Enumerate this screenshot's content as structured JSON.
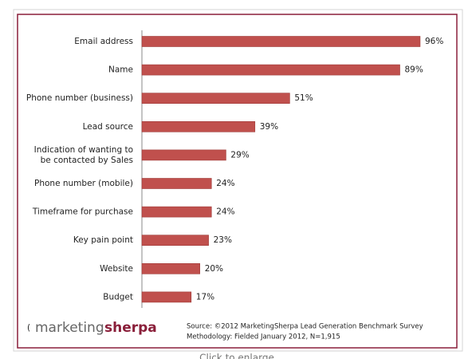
{
  "chart_data": {
    "type": "bar",
    "orientation": "horizontal",
    "categories": [
      "Email address",
      "Name",
      "Phone number (business)",
      "Lead source",
      "Indication of wanting to\nbe contacted by Sales",
      "Phone number (mobile)",
      "Timeframe for purchase",
      "Key pain point",
      "Website",
      "Budget"
    ],
    "values": [
      96,
      89,
      51,
      39,
      29,
      24,
      24,
      23,
      20,
      17
    ],
    "value_labels": [
      "96%",
      "89%",
      "51%",
      "39%",
      "29%",
      "24%",
      "24%",
      "23%",
      "20%",
      "17%"
    ],
    "color": "#c0504d",
    "logo_prefix": "marketing",
    "logo_suffix": "sherpa",
    "source": "Source: ©2012 MarketingSherpa Lead Generation Benchmark Survey",
    "methodology": "Methodology: Fielded January 2012, N=1,915",
    "caption": "Click to enlarge"
  }
}
